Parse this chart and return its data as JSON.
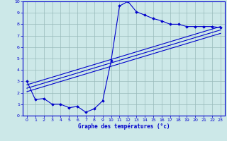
{
  "xlabel": "Graphe des températures (°c)",
  "xlim": [
    -0.5,
    23.5
  ],
  "ylim": [
    0,
    10
  ],
  "xticks": [
    0,
    1,
    2,
    3,
    4,
    5,
    6,
    7,
    8,
    9,
    10,
    11,
    12,
    13,
    14,
    15,
    16,
    17,
    18,
    19,
    20,
    21,
    22,
    23
  ],
  "yticks": [
    0,
    1,
    2,
    3,
    4,
    5,
    6,
    7,
    8,
    9,
    10
  ],
  "bg_color": "#cce8e8",
  "line_color": "#0000cc",
  "grid_color": "#99bbbb",
  "main_x": [
    0,
    1,
    2,
    3,
    4,
    5,
    6,
    7,
    8,
    9,
    10,
    11,
    12,
    13,
    14,
    15,
    16,
    17,
    18,
    19,
    20,
    21,
    22,
    23
  ],
  "main_y": [
    3.0,
    1.4,
    1.5,
    1.0,
    1.0,
    0.7,
    0.8,
    0.3,
    0.6,
    1.3,
    4.8,
    9.6,
    10.0,
    9.1,
    8.8,
    8.5,
    8.3,
    8.0,
    8.0,
    7.8,
    7.8,
    7.8,
    7.8,
    7.7
  ],
  "line2_x": [
    0,
    23
  ],
  "line2_y": [
    2.7,
    7.8
  ],
  "line3_x": [
    0,
    23
  ],
  "line3_y": [
    2.4,
    7.5
  ],
  "line4_x": [
    0,
    23
  ],
  "line4_y": [
    2.1,
    7.2
  ]
}
